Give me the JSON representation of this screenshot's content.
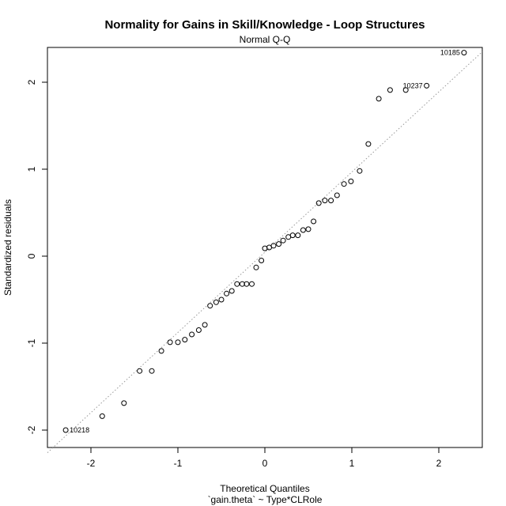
{
  "chart_data": {
    "type": "scatter",
    "title": "Normality for Gains in Skill/Knowledge - Loop Structures",
    "subtitle": "Normal Q-Q",
    "xlabel": "Theoretical Quantiles",
    "xlabel2": "`gain.theta` ~ Type*CLRole",
    "ylabel": "Standardized residuals",
    "xlim": [
      -2.5,
      2.5
    ],
    "ylim": [
      -2.2,
      2.4
    ],
    "xticks": [
      -2,
      -1,
      0,
      1,
      2
    ],
    "yticks": [
      -2,
      -1,
      0,
      1,
      2
    ],
    "xtick_labels": [
      "-2",
      "-1",
      "0",
      "1",
      "2"
    ],
    "ytick_labels": [
      "-2",
      "-1",
      "0",
      "1",
      "2"
    ],
    "reference_line": {
      "x": [
        -2.5,
        2.5
      ],
      "y": [
        -2.26,
        2.35
      ],
      "style": "dotted",
      "color": "#999999"
    },
    "point_color": "#000000",
    "points": [
      {
        "x": -2.29,
        "y": -2.0,
        "label": "10218"
      },
      {
        "x": -1.87,
        "y": -1.84
      },
      {
        "x": -1.62,
        "y": -1.69
      },
      {
        "x": -1.44,
        "y": -1.32
      },
      {
        "x": -1.3,
        "y": -1.32
      },
      {
        "x": -1.19,
        "y": -1.09
      },
      {
        "x": -1.09,
        "y": -0.99
      },
      {
        "x": -1.0,
        "y": -0.99
      },
      {
        "x": -0.92,
        "y": -0.96
      },
      {
        "x": -0.84,
        "y": -0.9
      },
      {
        "x": -0.76,
        "y": -0.85
      },
      {
        "x": -0.69,
        "y": -0.79
      },
      {
        "x": -0.63,
        "y": -0.57
      },
      {
        "x": -0.56,
        "y": -0.53
      },
      {
        "x": -0.5,
        "y": -0.5
      },
      {
        "x": -0.44,
        "y": -0.43
      },
      {
        "x": -0.38,
        "y": -0.4
      },
      {
        "x": -0.32,
        "y": -0.32
      },
      {
        "x": -0.26,
        "y": -0.32
      },
      {
        "x": -0.21,
        "y": -0.32
      },
      {
        "x": -0.15,
        "y": -0.32
      },
      {
        "x": -0.1,
        "y": -0.13
      },
      {
        "x": -0.04,
        "y": -0.05
      },
      {
        "x": 0.0,
        "y": 0.09
      },
      {
        "x": 0.05,
        "y": 0.1
      },
      {
        "x": 0.1,
        "y": 0.12
      },
      {
        "x": 0.16,
        "y": 0.14
      },
      {
        "x": 0.21,
        "y": 0.18
      },
      {
        "x": 0.27,
        "y": 0.22
      },
      {
        "x": 0.32,
        "y": 0.24
      },
      {
        "x": 0.38,
        "y": 0.24
      },
      {
        "x": 0.44,
        "y": 0.3
      },
      {
        "x": 0.5,
        "y": 0.31
      },
      {
        "x": 0.56,
        "y": 0.4
      },
      {
        "x": 0.62,
        "y": 0.61
      },
      {
        "x": 0.69,
        "y": 0.64
      },
      {
        "x": 0.76,
        "y": 0.64
      },
      {
        "x": 0.83,
        "y": 0.7
      },
      {
        "x": 0.91,
        "y": 0.83
      },
      {
        "x": 0.99,
        "y": 0.86
      },
      {
        "x": 1.09,
        "y": 0.98
      },
      {
        "x": 1.19,
        "y": 1.29
      },
      {
        "x": 1.31,
        "y": 1.81
      },
      {
        "x": 1.44,
        "y": 1.91
      },
      {
        "x": 1.62,
        "y": 1.91
      },
      {
        "x": 1.86,
        "y": 1.96,
        "label": "10237"
      },
      {
        "x": 2.29,
        "y": 2.34,
        "label": "10185"
      }
    ]
  }
}
